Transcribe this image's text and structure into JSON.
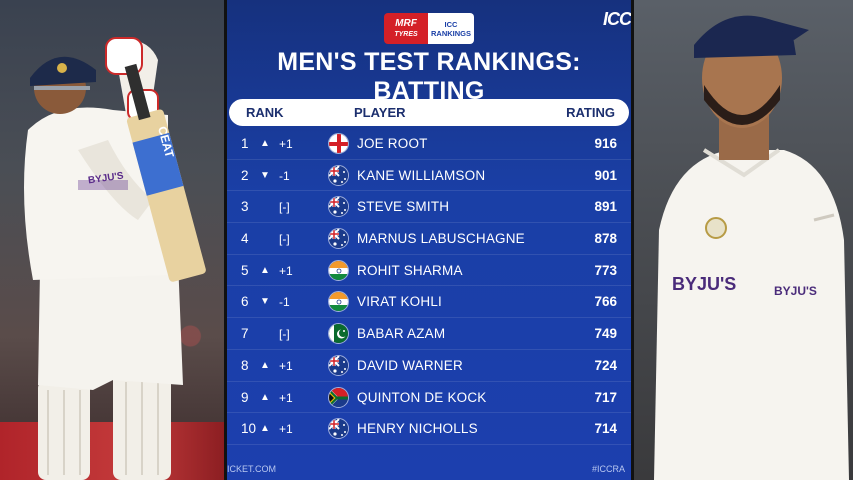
{
  "header": {
    "sponsor_line1": "MRF",
    "sponsor_line2": "TYRES",
    "icc_line1": "ICC",
    "icc_line2": "RANKINGS",
    "corner_badge": "ICC",
    "title": "MEN'S TEST RANKINGS: BATTING"
  },
  "columns": {
    "rank": "RANK",
    "player": "PLAYER",
    "rating": "RATING"
  },
  "rows": [
    {
      "rank": "1",
      "arrow": "▲",
      "change": "+1",
      "flag": "england",
      "player": "JOE ROOT",
      "rating": "916"
    },
    {
      "rank": "2",
      "arrow": "▼",
      "change": "-1",
      "flag": "australia",
      "player": "KANE WILLIAMSON",
      "rating": "901"
    },
    {
      "rank": "3",
      "arrow": "",
      "change": "[-]",
      "flag": "australia",
      "player": "STEVE SMITH",
      "rating": "891"
    },
    {
      "rank": "4",
      "arrow": "",
      "change": "[-]",
      "flag": "australia",
      "player": "MARNUS LABUSCHAGNE",
      "rating": "878"
    },
    {
      "rank": "5",
      "arrow": "▲",
      "change": "+1",
      "flag": "india",
      "player": "ROHIT SHARMA",
      "rating": "773"
    },
    {
      "rank": "6",
      "arrow": "▼",
      "change": "-1",
      "flag": "india",
      "player": "VIRAT KOHLI",
      "rating": "766"
    },
    {
      "rank": "7",
      "arrow": "",
      "change": "[-]",
      "flag": "pakistan",
      "player": "BABAR AZAM",
      "rating": "749"
    },
    {
      "rank": "8",
      "arrow": "▲",
      "change": "+1",
      "flag": "australia",
      "player": "DAVID WARNER",
      "rating": "724"
    },
    {
      "rank": "9",
      "arrow": "▲",
      "change": "+1",
      "flag": "south-africa",
      "player": "QUINTON DE KOCK",
      "rating": "717"
    },
    {
      "rank": "10",
      "arrow": "▲",
      "change": "+1",
      "flag": "australia",
      "player": "HENRY NICHOLLS",
      "rating": "714"
    }
  ],
  "footer": {
    "left": "ICKET.COM",
    "right": "#ICCRA"
  },
  "photos": {
    "left_bat_brand": "CEAT",
    "left_shirt_brand": "BYJU'S",
    "right_shirt_brand_chest": "BYJU'S",
    "right_shirt_brand_sleeve": "BYJU'S"
  },
  "colors": {
    "panel_blue": "#1a3fa6",
    "header_text": "#1c2f6e",
    "mrf_red": "#d42027"
  }
}
